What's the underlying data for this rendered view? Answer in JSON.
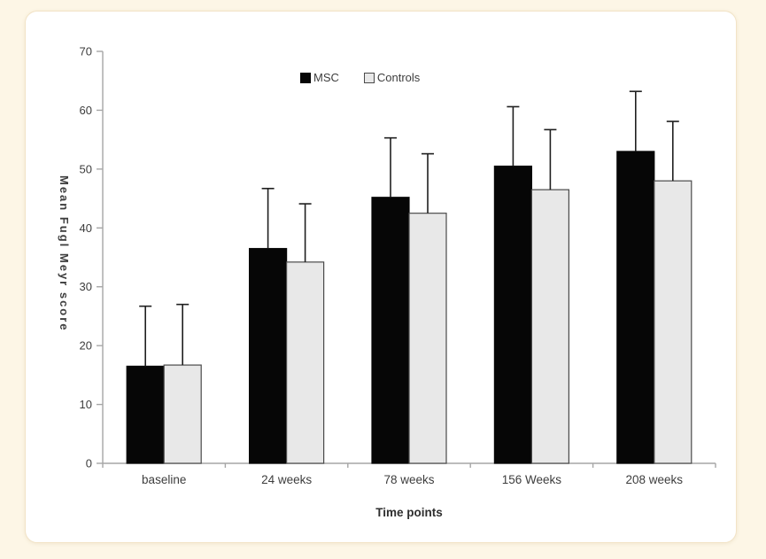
{
  "page": {
    "background_color": "#fdf6e6",
    "card_background_color": "#ffffff"
  },
  "colors": {
    "axis": "#a6a6a6",
    "text": "#3d3d3d",
    "error_bar": "#1f1f1f"
  },
  "chart_data": {
    "type": "bar",
    "title": "",
    "xlabel": "Time points",
    "ylabel": "Mean Fugl Meyr score",
    "categories": [
      "baseline",
      "24 weeks",
      "78 weeks",
      "156 Weeks",
      "208 weeks"
    ],
    "series": [
      {
        "name": "MSC",
        "color": "#060606",
        "border_color": "#060606",
        "values": [
          16.5,
          36.5,
          45.2,
          50.5,
          53.0
        ],
        "errors_up": [
          10.2,
          10.2,
          10.1,
          10.1,
          10.2
        ]
      },
      {
        "name": "Controls",
        "color": "#e8e8e8",
        "border_color": "#4a4a4a",
        "values": [
          16.7,
          34.2,
          42.5,
          46.5,
          48.0
        ],
        "errors_up": [
          10.3,
          9.9,
          10.1,
          10.2,
          10.1
        ]
      }
    ],
    "ylim": [
      0,
      70
    ],
    "ytick_step": 10,
    "grid": false,
    "legend_position": "top-center",
    "error_bars": "upper-only"
  }
}
